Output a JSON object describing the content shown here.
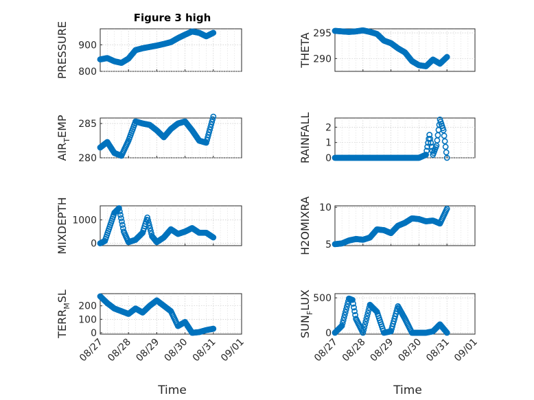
{
  "chart_data": {
    "type": "scatter",
    "title": "Figure 3 high",
    "marker": "circle",
    "marker_color": "#0072BD",
    "grid": "dotted",
    "x_axis": {
      "label": "Time",
      "ticks": [
        "08/27",
        "08/28",
        "08/29",
        "08/30",
        "08/31",
        "09/01"
      ],
      "range": [
        "08/27",
        "09/01"
      ]
    },
    "panels": [
      {
        "ylabel": "PRESSURE",
        "ylabel_sub": null,
        "ylim": [
          800,
          960
        ],
        "yticks": [
          800,
          900
        ],
        "x": [
          "08/27 00:00",
          "08/27 06:00",
          "08/27 12:00",
          "08/27 18:00",
          "08/28 00:00",
          "08/28 06:00",
          "08/28 12:00",
          "08/28 18:00",
          "08/29 00:00",
          "08/29 06:00",
          "08/29 12:00",
          "08/29 18:00",
          "08/30 00:00",
          "08/30 06:00",
          "08/30 12:00",
          "08/30 18:00",
          "08/31 00:00"
        ],
        "y": [
          845,
          850,
          838,
          832,
          848,
          880,
          887,
          892,
          897,
          903,
          910,
          925,
          938,
          950,
          945,
          932,
          945
        ]
      },
      {
        "ylabel": "THETA",
        "ylabel_sub": null,
        "ylim": [
          287.5,
          295.8
        ],
        "yticks": [
          290,
          295
        ],
        "x": [
          "08/27 00:00",
          "08/27 06:00",
          "08/27 12:00",
          "08/27 18:00",
          "08/28 00:00",
          "08/28 06:00",
          "08/28 12:00",
          "08/28 18:00",
          "08/29 00:00",
          "08/29 06:00",
          "08/29 12:00",
          "08/29 18:00",
          "08/30 00:00",
          "08/30 06:00",
          "08/30 12:00",
          "08/30 18:00",
          "08/31 00:00"
        ],
        "y": [
          295.4,
          295.3,
          295.2,
          295.3,
          295.5,
          295.2,
          294.8,
          293.5,
          293,
          292,
          291.2,
          289.5,
          288.7,
          288.5,
          289.8,
          289,
          290.3
        ]
      },
      {
        "ylabel": "AIR",
        "ylabel_sub": "T",
        "ylabel_tail": "EMP",
        "ylim": [
          280,
          285.8
        ],
        "yticks": [
          280,
          285
        ],
        "x": [
          "08/27 00:00",
          "08/27 06:00",
          "08/27 12:00",
          "08/27 18:00",
          "08/28 00:00",
          "08/28 06:00",
          "08/28 12:00",
          "08/28 18:00",
          "08/29 00:00",
          "08/29 06:00",
          "08/29 12:00",
          "08/29 18:00",
          "08/30 00:00",
          "08/30 06:00",
          "08/30 12:00",
          "08/30 18:00",
          "08/31 00:00"
        ],
        "y": [
          281.5,
          282.3,
          280.7,
          280.3,
          282.5,
          285.3,
          285,
          284.8,
          284,
          283,
          284.2,
          285,
          285.3,
          284,
          282.5,
          282.2,
          286
        ]
      },
      {
        "ylabel": "RAINFALL",
        "ylabel_sub": null,
        "ylim": [
          0,
          2.6
        ],
        "yticks": [
          0,
          1,
          2
        ],
        "x": [
          "08/27 00:00",
          "08/27 12:00",
          "08/28 00:00",
          "08/28 12:00",
          "08/29 00:00",
          "08/29 12:00",
          "08/30 00:00",
          "08/30 06:00",
          "08/30 09:00",
          "08/30 12:00",
          "08/30 15:00",
          "08/30 18:00",
          "08/30 21:00",
          "08/31 00:00"
        ],
        "y": [
          0,
          0,
          0,
          0,
          0,
          0,
          0,
          0.2,
          1.5,
          0.2,
          0.8,
          2.5,
          1.8,
          0
        ]
      },
      {
        "ylabel": "MIXDEPTH",
        "ylabel_sub": null,
        "ylim": [
          -100,
          1600
        ],
        "yticks": [
          0,
          1000
        ],
        "x": [
          "08/27 00:00",
          "08/27 04:00",
          "08/27 08:00",
          "08/27 12:00",
          "08/27 16:00",
          "08/27 20:00",
          "08/28 00:00",
          "08/28 06:00",
          "08/28 12:00",
          "08/28 16:00",
          "08/28 20:00",
          "08/29 00:00",
          "08/29 06:00",
          "08/29 12:00",
          "08/29 18:00",
          "08/30 00:00",
          "08/30 06:00",
          "08/30 12:00",
          "08/30 18:00",
          "08/31 00:00"
        ],
        "y": [
          0,
          100,
          700,
          1300,
          1500,
          500,
          50,
          150,
          450,
          1100,
          300,
          50,
          250,
          600,
          400,
          500,
          650,
          450,
          450,
          250
        ]
      },
      {
        "ylabel": "H2OMIXRA",
        "ylabel_sub": null,
        "ylim": [
          4.8,
          10.2
        ],
        "yticks": [
          5,
          10
        ],
        "x": [
          "08/27 00:00",
          "08/27 06:00",
          "08/27 12:00",
          "08/27 18:00",
          "08/28 00:00",
          "08/28 06:00",
          "08/28 12:00",
          "08/28 18:00",
          "08/29 00:00",
          "08/29 06:00",
          "08/29 12:00",
          "08/29 18:00",
          "08/30 00:00",
          "08/30 06:00",
          "08/30 12:00",
          "08/30 18:00",
          "08/31 00:00"
        ],
        "y": [
          5,
          5.1,
          5.5,
          5.7,
          5.6,
          5.9,
          7,
          6.9,
          6.5,
          7.5,
          7.9,
          8.5,
          8.4,
          8.1,
          8.2,
          7.8,
          9.8
        ]
      },
      {
        "ylabel": "TERR",
        "ylabel_sub": "M",
        "ylabel_tail": "SL",
        "ylim": [
          -10,
          290
        ],
        "yticks": [
          0,
          100,
          200
        ],
        "x": [
          "08/27 00:00",
          "08/27 06:00",
          "08/27 12:00",
          "08/27 18:00",
          "08/28 00:00",
          "08/28 06:00",
          "08/28 12:00",
          "08/28 18:00",
          "08/29 00:00",
          "08/29 06:00",
          "08/29 12:00",
          "08/29 18:00",
          "08/30 00:00",
          "08/30 06:00",
          "08/30 12:00",
          "08/30 18:00",
          "08/31 00:00"
        ],
        "y": [
          270,
          220,
          180,
          160,
          140,
          180,
          150,
          200,
          240,
          200,
          160,
          50,
          80,
          0,
          5,
          20,
          30
        ]
      },
      {
        "ylabel": "SUN",
        "ylabel_sub": "F",
        "ylabel_tail": "LUX",
        "ylim": [
          -20,
          560
        ],
        "yticks": [
          0,
          500
        ],
        "x": [
          "08/27 00:00",
          "08/27 06:00",
          "08/27 12:00",
          "08/27 15:00",
          "08/27 18:00",
          "08/28 00:00",
          "08/28 06:00",
          "08/28 12:00",
          "08/28 18:00",
          "08/29 00:00",
          "08/29 06:00",
          "08/29 12:00",
          "08/29 18:00",
          "08/30 00:00",
          "08/30 06:00",
          "08/30 12:00",
          "08/30 18:00",
          "08/31 00:00"
        ],
        "y": [
          0,
          100,
          490,
          470,
          200,
          0,
          400,
          300,
          0,
          20,
          380,
          200,
          0,
          0,
          0,
          20,
          120,
          0
        ]
      }
    ]
  }
}
